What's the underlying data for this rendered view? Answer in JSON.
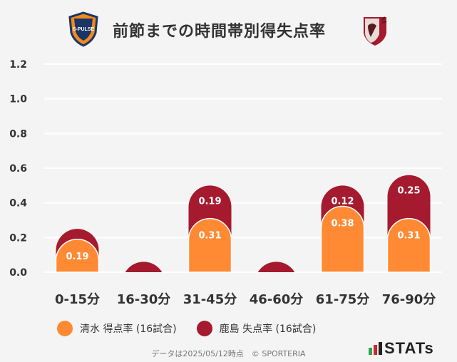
{
  "header": {
    "title": "前節までの時間帯別得失点率",
    "left_logo_text": "S-PULSE",
    "left_logo_icon": "shimizu-emblem-icon",
    "right_logo_icon": "kashima-emblem-icon"
  },
  "chart_data": {
    "type": "bar",
    "stacked": true,
    "categories": [
      "0-15分",
      "16-30分",
      "31-45分",
      "46-60分",
      "61-75分",
      "76-90分"
    ],
    "series": [
      {
        "name": "清水 得点率 (16試合)",
        "color": "#ff8a33",
        "values": [
          0.19,
          0.0,
          0.31,
          0.0,
          0.38,
          0.31
        ]
      },
      {
        "name": "鹿島 失点率 (16試合)",
        "color": "#a51a2e",
        "values": [
          0.06,
          0.06,
          0.19,
          0.06,
          0.12,
          0.25
        ]
      }
    ],
    "data_labels": [
      [
        "0.19",
        "",
        "0.31",
        "",
        "0.38",
        "0.31"
      ],
      [
        "",
        "",
        "0.19",
        "",
        "0.12",
        "0.25"
      ]
    ],
    "yticks": [
      "0.0",
      "0.2",
      "0.4",
      "0.6",
      "0.8",
      "1.0",
      "1.2"
    ],
    "ylim": [
      0,
      1.2
    ],
    "grid": true,
    "legend_position": "bottom"
  },
  "footer": {
    "note": "データは2025/05/12時点　© SPORTERIA",
    "brand": "STATs"
  }
}
